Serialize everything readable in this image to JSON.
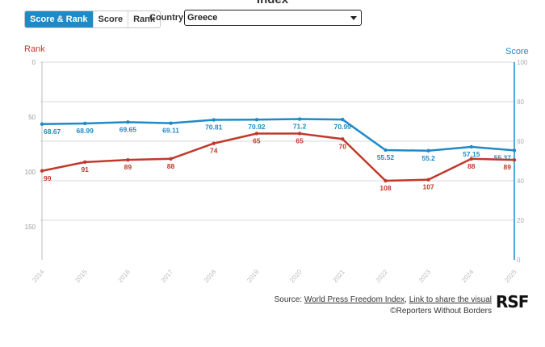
{
  "page": {
    "title_fragment": "Index"
  },
  "controls": {
    "tabs": [
      {
        "label": "Score & Rank",
        "active": true
      },
      {
        "label": "Score",
        "active": false
      },
      {
        "label": "Rank",
        "active": false
      }
    ],
    "country_label": "Country",
    "country_value": "Greece"
  },
  "chart_data": {
    "type": "line",
    "x": [
      "2014",
      "2015",
      "2016",
      "2017",
      "2018",
      "2019",
      "2020",
      "2021",
      "2022",
      "2023",
      "2024",
      "2025"
    ],
    "series": [
      {
        "name": "Score",
        "axis": "right",
        "color": "#1f8ac6",
        "values": [
          68.67,
          68.99,
          69.65,
          69.11,
          70.81,
          70.92,
          71.2,
          70.99,
          55.52,
          55.2,
          57.15,
          55.37
        ],
        "labels": [
          "68.67",
          "68.99",
          "69.65",
          "69.11",
          "70.81",
          "70.92",
          "71.2",
          "70.99",
          "55.52",
          "55.2",
          "57.15",
          "55.37"
        ]
      },
      {
        "name": "Rank",
        "axis": "left",
        "color": "#c0392b",
        "values": [
          99,
          91,
          89,
          88,
          74,
          65,
          65,
          70,
          108,
          107,
          88,
          89
        ],
        "labels": [
          "99",
          "91",
          "89",
          "88",
          "74",
          "65",
          "65",
          "70",
          "108",
          "107",
          "88",
          "89"
        ]
      }
    ],
    "left_axis": {
      "title": "Rank",
      "range": [
        0,
        180
      ],
      "ticks": [
        "0",
        "50",
        "100",
        "150"
      ],
      "tick_values": [
        0,
        50,
        100,
        150
      ],
      "inverted": true
    },
    "right_axis": {
      "title": "Score",
      "range": [
        0,
        100
      ],
      "ticks": [
        "0",
        "20",
        "40",
        "60",
        "80",
        "100"
      ],
      "tick_values": [
        0,
        20,
        40,
        60,
        80,
        100
      ]
    }
  },
  "footer": {
    "source_prefix": "Source: ",
    "source_link": "World Press Freedom Index",
    "separator": ", ",
    "share_link": "Link to share the visual",
    "copyright": "©Reporters Without Borders",
    "logo": "RSF"
  }
}
